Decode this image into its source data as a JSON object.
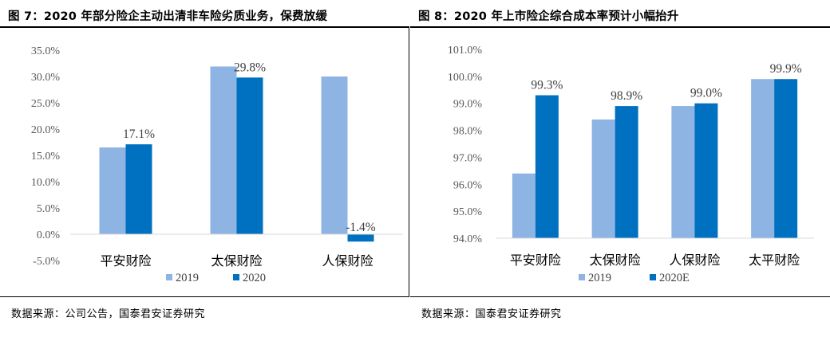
{
  "left": {
    "title": "图 7：2020 年部分险企主动出清非车险劣质业务，保费放缓",
    "source": "数据来源：公司公告，国泰君安证券研究",
    "chart_data": {
      "type": "bar",
      "categories": [
        "平安财险",
        "太保财险",
        "人保财险"
      ],
      "series": [
        {
          "name": "2019",
          "values": [
            16.5,
            31.9,
            30.0
          ],
          "color": "#8eb4e3"
        },
        {
          "name": "2020",
          "values": [
            17.1,
            29.8,
            -1.4
          ],
          "color": "#0070c0"
        }
      ],
      "data_labels": [
        null,
        "17.1%",
        null,
        "29.8%",
        null,
        "-1.4%"
      ],
      "ylim": [
        -5,
        35
      ],
      "yticks": [
        "35.0%",
        "30.0%",
        "25.0%",
        "20.0%",
        "15.0%",
        "10.0%",
        "5.0%",
        "0.0%",
        "-5.0%"
      ],
      "ytick_values": [
        35,
        30,
        25,
        20,
        15,
        10,
        5,
        0,
        -5
      ],
      "legend": "bottom-center",
      "grid": false
    }
  },
  "right": {
    "title": "图 8：2020 年上市险企综合成本率预计小幅抬升",
    "source": "数据来源：国泰君安证券研究",
    "chart_data": {
      "type": "bar",
      "categories": [
        "平安财险",
        "太保财险",
        "人保财险",
        "太平财险"
      ],
      "series": [
        {
          "name": "2019",
          "values": [
            96.4,
            98.4,
            98.9,
            99.9
          ],
          "color": "#8eb4e3"
        },
        {
          "name": "2020E",
          "values": [
            99.3,
            98.9,
            99.0,
            99.9
          ],
          "color": "#0070c0"
        }
      ],
      "data_labels": [
        "99.3%",
        "98.9%",
        "99.0%",
        "99.9%"
      ],
      "ylim": [
        94,
        101
      ],
      "yticks": [
        "101.0%",
        "100.0%",
        "99.0%",
        "98.0%",
        "97.0%",
        "96.0%",
        "95.0%",
        "94.0%"
      ],
      "ytick_values": [
        101,
        100,
        99,
        98,
        97,
        96,
        95,
        94
      ],
      "legend": "bottom-center",
      "grid": false
    }
  }
}
